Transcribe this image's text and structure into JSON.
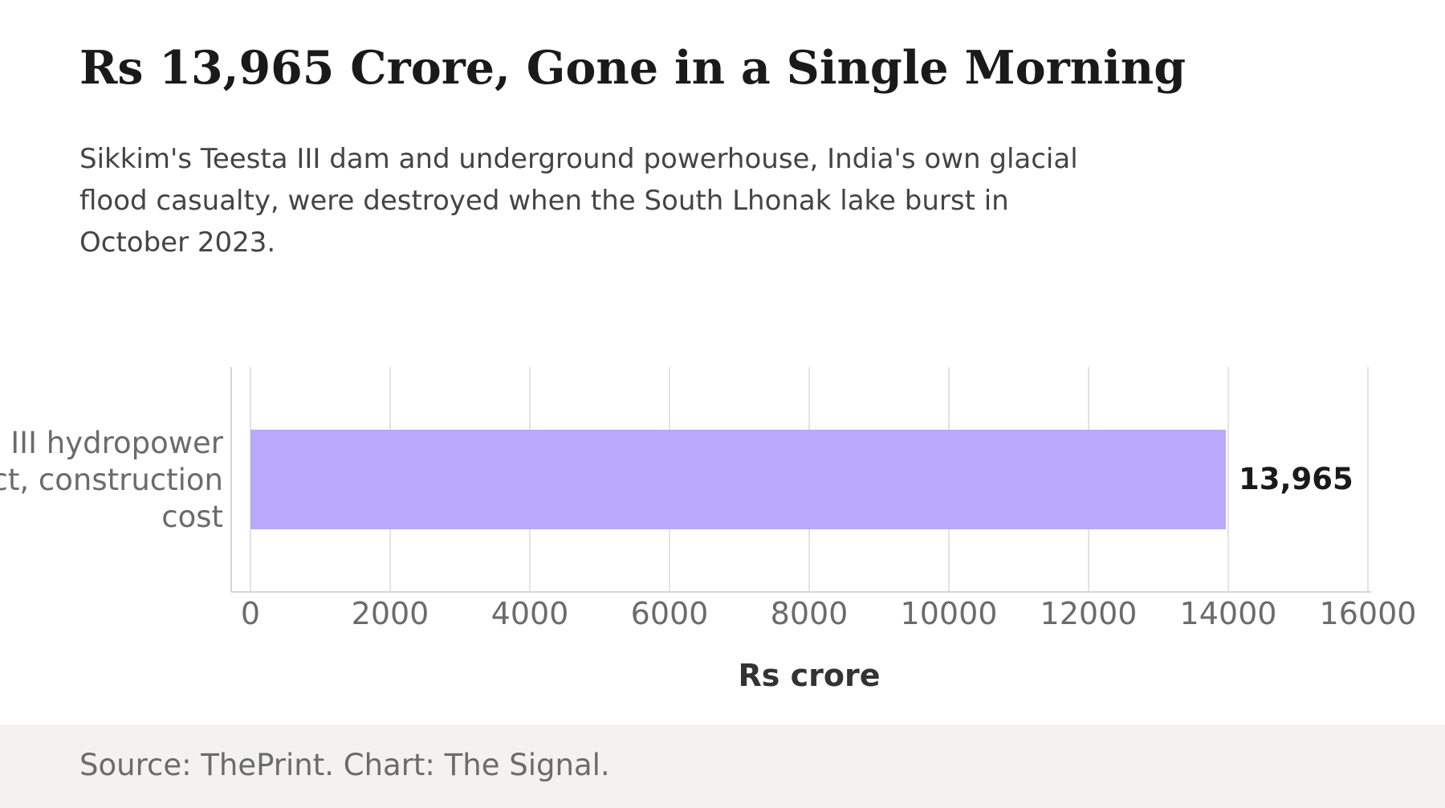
{
  "header": {
    "title": "Rs 13,965 Crore, Gone in a Single Morning",
    "subtitle": "Sikkim's Teesta III dam and underground powerhouse, India's own glacial flood casualty, were destroyed when the South Lhonak lake burst in October 2023."
  },
  "chart_data": {
    "type": "bar",
    "orientation": "horizontal",
    "categories": [
      "Teesta III hydropower project, construction cost"
    ],
    "category_lines": [
      [
        "Teesta III hydropower",
        "project, construction",
        "cost"
      ]
    ],
    "values": [
      13965
    ],
    "data_labels": [
      "13,965"
    ],
    "xlabel": "Rs crore",
    "ylabel": "",
    "xlim": [
      0,
      16000
    ],
    "xticks": [
      0,
      2000,
      4000,
      6000,
      8000,
      10000,
      12000,
      14000,
      16000
    ],
    "grid": "vertical",
    "colors": {
      "bar": "#b8a9fc"
    }
  },
  "footer": {
    "source": "Source: ThePrint. Chart: The Signal."
  }
}
